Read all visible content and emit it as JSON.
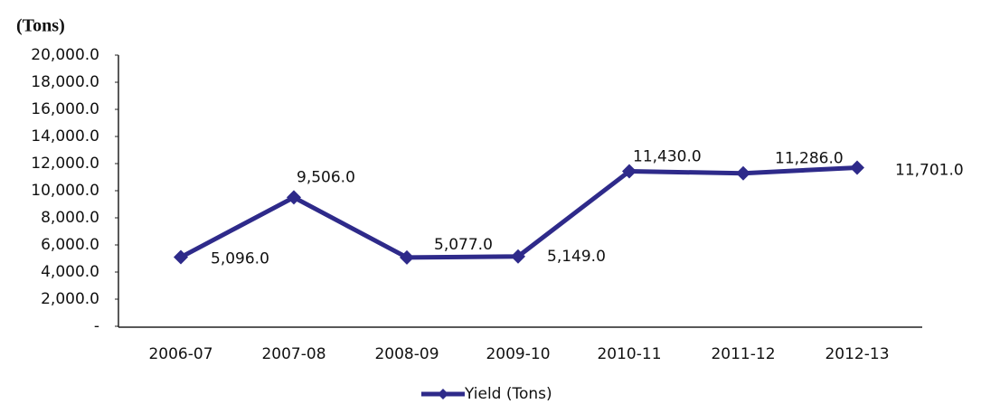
{
  "chart_data": {
    "type": "line",
    "title": "(Tons)",
    "categories": [
      "2006-07",
      "2007-08",
      "2008-09",
      "2009-10",
      "2010-11",
      "2011-12",
      "2012-13"
    ],
    "series": [
      {
        "name": "Yield (Tons)",
        "color": "#2e2a8a",
        "values": [
          5096,
          9506,
          5077,
          5149,
          11430,
          11286,
          11701
        ],
        "value_labels": [
          "5,096.0",
          "9,506.0",
          "5,077.0",
          "5,149.0",
          "11,430.0",
          "11,286.0",
          "11,701.0"
        ]
      }
    ],
    "ylim": [
      0,
      20000
    ],
    "yticks": [
      {
        "value": 0,
        "label": "-"
      },
      {
        "value": 2000,
        "label": "2,000.0"
      },
      {
        "value": 4000,
        "label": "4,000.0"
      },
      {
        "value": 6000,
        "label": "6,000.0"
      },
      {
        "value": 8000,
        "label": "8,000.0"
      },
      {
        "value": 10000,
        "label": "10,000.0"
      },
      {
        "value": 12000,
        "label": "12,000.0"
      },
      {
        "value": 14000,
        "label": "14,000.0"
      },
      {
        "value": 16000,
        "label": "16,000.0"
      },
      {
        "value": 18000,
        "label": "18,000.0"
      },
      {
        "value": 20000,
        "label": "20,000.0"
      }
    ],
    "legend": "bottom",
    "grid": false
  }
}
